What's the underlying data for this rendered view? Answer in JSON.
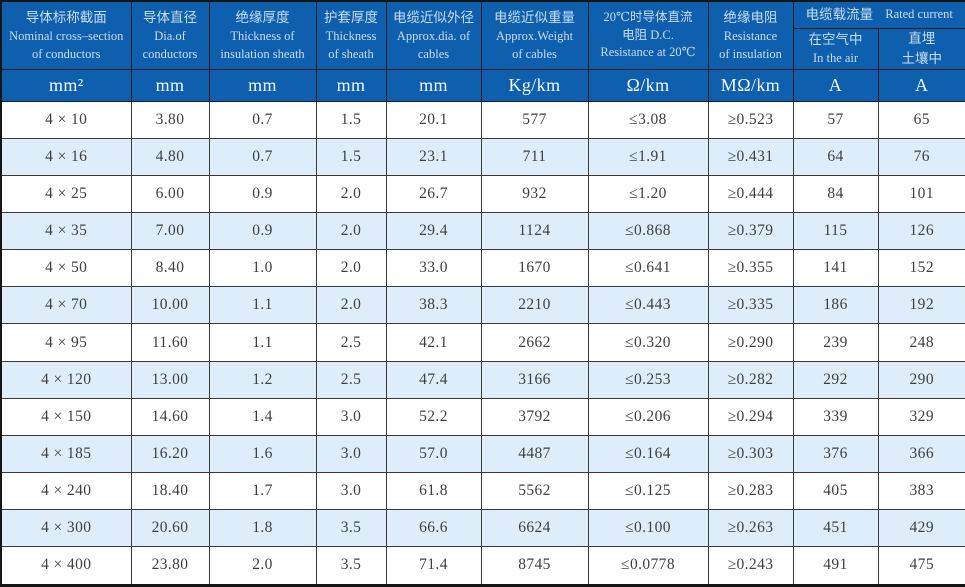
{
  "colors": {
    "header_bg": "#0e5fad",
    "header_text": "#c9ddf3",
    "unit_text": "#f4f8fc",
    "row_alt": "#ddeefa",
    "data_text": "#3f3f3f",
    "grid": "#3a3a3a"
  },
  "table": {
    "header": {
      "cols": [
        {
          "lines": [
            "导体标称截面",
            "Nominal cross–section",
            "of conductors"
          ]
        },
        {
          "lines": [
            "导体直径",
            "Dia.of",
            "conductors"
          ]
        },
        {
          "lines": [
            "绝缘厚度",
            "Thickness of",
            "insulation sheath"
          ]
        },
        {
          "lines": [
            "护套厚度",
            "Thickness",
            "of sheath"
          ]
        },
        {
          "lines": [
            "电缆近似外径",
            "Approx.dia. of",
            "cables"
          ]
        },
        {
          "lines": [
            "电缆近似重量",
            "Approx.Weight",
            "of cables"
          ]
        },
        {
          "lines": [
            "20℃时导体直流",
            "电阻 D.C.",
            "Resistance at 20℃"
          ]
        },
        {
          "lines": [
            "绝缘电阻",
            "Resistance",
            "of insulation"
          ]
        }
      ],
      "current_group": {
        "zh": "电缆载流量",
        "en": "Rated current"
      },
      "air": {
        "lines": [
          "在空气中",
          "In the air"
        ]
      },
      "soil": {
        "lines": [
          "直埋",
          "土壤中"
        ]
      },
      "units": [
        "mm²",
        "mm",
        "mm",
        "mm",
        "mm",
        "Kg/km",
        "Ω/km",
        "MΩ/km",
        "A",
        "A"
      ]
    },
    "rows": [
      [
        "4 × 10",
        "3.80",
        "0.7",
        "1.5",
        "20.1",
        "577",
        "≤3.08",
        "≥0.523",
        "57",
        "65"
      ],
      [
        "4 × 16",
        "4.80",
        "0.7",
        "1.5",
        "23.1",
        "711",
        "≤1.91",
        "≥0.431",
        "64",
        "76"
      ],
      [
        "4 × 25",
        "6.00",
        "0.9",
        "2.0",
        "26.7",
        "932",
        "≤1.20",
        "≥0.444",
        "84",
        "101"
      ],
      [
        "4 × 35",
        "7.00",
        "0.9",
        "2.0",
        "29.4",
        "1124",
        "≤0.868",
        "≥0.379",
        "115",
        "126"
      ],
      [
        "4 × 50",
        "8.40",
        "1.0",
        "2.0",
        "33.0",
        "1670",
        "≤0.641",
        "≥0.355",
        "141",
        "152"
      ],
      [
        "4 × 70",
        "10.00",
        "1.1",
        "2.0",
        "38.3",
        "2210",
        "≤0.443",
        "≥0.335",
        "186",
        "192"
      ],
      [
        "4 × 95",
        "11.60",
        "1.1",
        "2.5",
        "42.1",
        "2662",
        "≤0.320",
        "≥0.290",
        "239",
        "248"
      ],
      [
        "4 × 120",
        "13.00",
        "1.2",
        "2.5",
        "47.4",
        "3166",
        "≤0.253",
        "≥0.282",
        "292",
        "290"
      ],
      [
        "4 × 150",
        "14.60",
        "1.4",
        "3.0",
        "52.2",
        "3792",
        "≤0.206",
        "≥0.294",
        "339",
        "329"
      ],
      [
        "4 × 185",
        "16.20",
        "1.6",
        "3.0",
        "57.0",
        "4487",
        "≤0.164",
        "≥0.303",
        "376",
        "366"
      ],
      [
        "4 × 240",
        "18.40",
        "1.7",
        "3.0",
        "61.8",
        "5562",
        "≤0.125",
        "≥0.283",
        "405",
        "383"
      ],
      [
        "4 × 300",
        "20.60",
        "1.8",
        "3.5",
        "66.6",
        "6624",
        "≤0.100",
        "≥0.263",
        "451",
        "429"
      ],
      [
        "4 × 400",
        "23.80",
        "2.0",
        "3.5",
        "71.4",
        "8745",
        "≤0.0778",
        "≥0.243",
        "491",
        "475"
      ]
    ]
  }
}
